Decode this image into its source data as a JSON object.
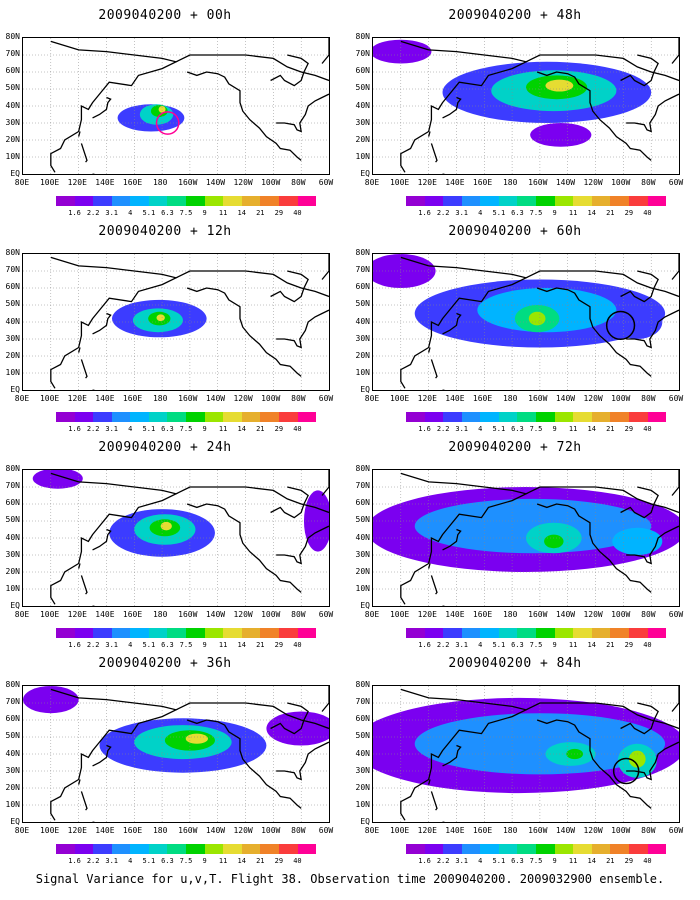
{
  "chart_data": {
    "type": "heatmap",
    "caption": "Signal Variance for u,v,T. Flight 38. Observation time 2009040200. 2009032900 ensemble.",
    "x_tick_labels": [
      "80E",
      "100E",
      "120E",
      "140E",
      "160E",
      "180",
      "160W",
      "140W",
      "120W",
      "100W",
      "80W",
      "60W"
    ],
    "y_tick_labels": [
      "80N",
      "70N",
      "60N",
      "50N",
      "40N",
      "30N",
      "20N",
      "10N",
      "EQ"
    ],
    "xlim_deg_east": [
      80,
      300
    ],
    "ylim_deg_north": [
      0,
      80
    ],
    "colorbar": {
      "labels": [
        "1.6",
        "2.2",
        "3.1",
        "4",
        "5.1",
        "6.3",
        "7.5",
        "9",
        "11",
        "14",
        "21",
        "29",
        "40"
      ],
      "colors": [
        "#9400d3",
        "#7b00f0",
        "#3c3cff",
        "#1e90ff",
        "#00b4ff",
        "#00d2c8",
        "#00dc82",
        "#00d200",
        "#9be600",
        "#e6dc32",
        "#e6af2d",
        "#f08228",
        "#fa3c3c",
        "#ff0096"
      ]
    },
    "panels": [
      {
        "title": "2009040200 + 00h",
        "blobs": [
          {
            "lon": 172,
            "lat": 33,
            "rx": 24,
            "ry": 8,
            "level": 2
          },
          {
            "lon": 176,
            "lat": 35,
            "rx": 12,
            "ry": 6,
            "level": 5
          },
          {
            "lon": 178,
            "lat": 37,
            "rx": 6,
            "ry": 3.5,
            "level": 7
          },
          {
            "lon": 180,
            "lat": 38,
            "rx": 2.5,
            "ry": 2,
            "level": 9
          }
        ],
        "circles": [
          {
            "lon": 184,
            "lat": 30,
            "r": 8,
            "color": "#ff0096"
          }
        ]
      },
      {
        "title": "2009040200 + 12h",
        "blobs": [
          {
            "lon": 178,
            "lat": 42,
            "rx": 34,
            "ry": 11,
            "level": 2
          },
          {
            "lon": 177,
            "lat": 41,
            "rx": 18,
            "ry": 7,
            "level": 5
          },
          {
            "lon": 178,
            "lat": 42,
            "rx": 8,
            "ry": 4,
            "level": 7
          },
          {
            "lon": 179,
            "lat": 42.5,
            "rx": 3,
            "ry": 2,
            "level": 9
          }
        ],
        "circles": []
      },
      {
        "title": "2009040200 + 24h",
        "blobs": [
          {
            "lon": 105,
            "lat": 75,
            "rx": 18,
            "ry": 6,
            "level": 1
          },
          {
            "lon": 180,
            "lat": 43,
            "rx": 38,
            "ry": 14,
            "level": 2
          },
          {
            "lon": 182,
            "lat": 45,
            "rx": 22,
            "ry": 9,
            "level": 5
          },
          {
            "lon": 182,
            "lat": 46,
            "rx": 11,
            "ry": 5,
            "level": 7
          },
          {
            "lon": 183,
            "lat": 47,
            "rx": 4,
            "ry": 2.5,
            "level": 9
          },
          {
            "lon": 292,
            "lat": 50,
            "rx": 10,
            "ry": 18,
            "level": 1
          }
        ],
        "circles": []
      },
      {
        "title": "2009040200 + 36h",
        "blobs": [
          {
            "lon": 100,
            "lat": 72,
            "rx": 20,
            "ry": 8,
            "level": 1
          },
          {
            "lon": 195,
            "lat": 45,
            "rx": 60,
            "ry": 16,
            "level": 2
          },
          {
            "lon": 195,
            "lat": 47,
            "rx": 35,
            "ry": 10,
            "level": 5
          },
          {
            "lon": 200,
            "lat": 48,
            "rx": 18,
            "ry": 6,
            "level": 7
          },
          {
            "lon": 205,
            "lat": 49,
            "rx": 8,
            "ry": 3,
            "level": 9
          },
          {
            "lon": 280,
            "lat": 55,
            "rx": 25,
            "ry": 10,
            "level": 1
          }
        ],
        "circles": []
      },
      {
        "title": "2009040200 + 48h",
        "blobs": [
          {
            "lon": 100,
            "lat": 72,
            "rx": 22,
            "ry": 7,
            "level": 1
          },
          {
            "lon": 205,
            "lat": 48,
            "rx": 75,
            "ry": 18,
            "level": 2
          },
          {
            "lon": 210,
            "lat": 49,
            "rx": 45,
            "ry": 12,
            "level": 5
          },
          {
            "lon": 212,
            "lat": 51,
            "rx": 22,
            "ry": 7,
            "level": 7
          },
          {
            "lon": 214,
            "lat": 52,
            "rx": 10,
            "ry": 3.5,
            "level": 9
          },
          {
            "lon": 215,
            "lat": 23,
            "rx": 22,
            "ry": 7,
            "level": 1
          }
        ],
        "circles": []
      },
      {
        "title": "2009040200 + 60h",
        "blobs": [
          {
            "lon": 100,
            "lat": 70,
            "rx": 25,
            "ry": 10,
            "level": 1
          },
          {
            "lon": 200,
            "lat": 45,
            "rx": 90,
            "ry": 20,
            "level": 2
          },
          {
            "lon": 205,
            "lat": 47,
            "rx": 50,
            "ry": 13,
            "level": 4
          },
          {
            "lon": 198,
            "lat": 42,
            "rx": 16,
            "ry": 8,
            "level": 6
          },
          {
            "lon": 198,
            "lat": 42,
            "rx": 6,
            "ry": 4,
            "level": 8
          },
          {
            "lon": 270,
            "lat": 40,
            "rx": 18,
            "ry": 10,
            "level": 2
          }
        ],
        "circles": [
          {
            "lon": 258,
            "lat": 38,
            "r": 10,
            "color": "#000000"
          }
        ]
      },
      {
        "title": "2009040200 + 72h",
        "blobs": [
          {
            "lon": 190,
            "lat": 45,
            "rx": 115,
            "ry": 25,
            "level": 1
          },
          {
            "lon": 195,
            "lat": 47,
            "rx": 85,
            "ry": 16,
            "level": 3
          },
          {
            "lon": 210,
            "lat": 40,
            "rx": 20,
            "ry": 9,
            "level": 5
          },
          {
            "lon": 210,
            "lat": 38,
            "rx": 7,
            "ry": 4,
            "level": 7
          },
          {
            "lon": 270,
            "lat": 38,
            "rx": 18,
            "ry": 8,
            "level": 4
          }
        ],
        "circles": []
      },
      {
        "title": "2009040200 + 84h",
        "blobs": [
          {
            "lon": 185,
            "lat": 45,
            "rx": 120,
            "ry": 28,
            "level": 1
          },
          {
            "lon": 200,
            "lat": 46,
            "rx": 90,
            "ry": 18,
            "level": 3
          },
          {
            "lon": 222,
            "lat": 40,
            "rx": 18,
            "ry": 7,
            "level": 5
          },
          {
            "lon": 225,
            "lat": 40,
            "rx": 6,
            "ry": 3,
            "level": 7
          },
          {
            "lon": 270,
            "lat": 36,
            "rx": 14,
            "ry": 10,
            "level": 5
          },
          {
            "lon": 270,
            "lat": 37,
            "rx": 6,
            "ry": 5,
            "level": 8
          }
        ],
        "circles": [
          {
            "lon": 262,
            "lat": 30,
            "r": 9,
            "color": "#000000"
          }
        ]
      }
    ]
  }
}
